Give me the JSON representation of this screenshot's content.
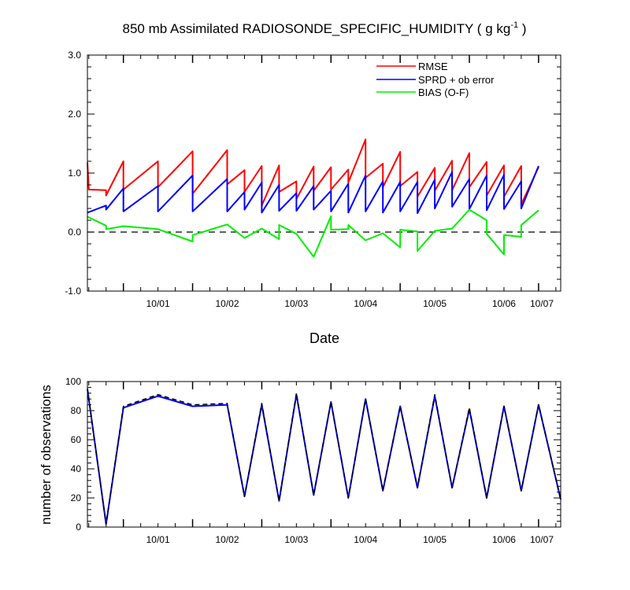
{
  "chart_data": [
    {
      "type": "line",
      "title_main": "850 mb Assimilated RADIOSONDE_SPECIFIC_HUMIDITY ( g kg",
      "title_sup": "-1",
      "title_end": " )",
      "xlabel": "Date",
      "ylabel": "",
      "ylim": [
        -1.0,
        3.0
      ],
      "yticks": [
        {
          "value": -1.0,
          "label": "-1.0"
        },
        {
          "value": 0.0,
          "label": "0.0"
        },
        {
          "value": 1.0,
          "label": "1.0"
        },
        {
          "value": 2.0,
          "label": "2.0"
        },
        {
          "value": 3.0,
          "label": "3.0"
        }
      ],
      "xlim": [
        -0.52,
        6.32
      ],
      "xticks": [
        {
          "value": 0.5,
          "label": "10/01"
        },
        {
          "value": 1.5,
          "label": "10/02"
        },
        {
          "value": 2.5,
          "label": "10/03"
        },
        {
          "value": 3.5,
          "label": "10/04"
        },
        {
          "value": 4.5,
          "label": "10/05"
        },
        {
          "value": 5.5,
          "label": "10/06"
        },
        {
          "value": 6.5,
          "label": "10/07"
        }
      ],
      "reference_line": 0.0,
      "legend_position": "top-right",
      "series": [
        {
          "name": "RMSE",
          "color": "#ff0000",
          "points": [
            [
              -0.52,
              1.18
            ],
            [
              -0.5,
              0.72
            ],
            [
              -0.25,
              0.71
            ],
            [
              -0.25,
              0.62
            ],
            [
              0.0,
              1.2
            ],
            [
              0.0,
              0.72
            ],
            [
              0.5,
              1.2
            ],
            [
              0.5,
              0.76
            ],
            [
              1.0,
              1.37
            ],
            [
              1.0,
              0.65
            ],
            [
              1.5,
              1.39
            ],
            [
              1.5,
              0.81
            ],
            [
              1.75,
              1.05
            ],
            [
              1.75,
              0.68
            ],
            [
              2.0,
              1.12
            ],
            [
              2.0,
              0.45
            ],
            [
              2.25,
              1.13
            ],
            [
              2.25,
              0.68
            ],
            [
              2.5,
              0.86
            ],
            [
              2.5,
              0.56
            ],
            [
              2.75,
              1.11
            ],
            [
              2.75,
              0.7
            ],
            [
              3.0,
              1.1
            ],
            [
              3.0,
              0.72
            ],
            [
              3.25,
              1.06
            ],
            [
              3.25,
              0.84
            ],
            [
              3.5,
              1.57
            ],
            [
              3.5,
              0.92
            ],
            [
              3.75,
              1.16
            ],
            [
              3.75,
              0.76
            ],
            [
              4.0,
              1.36
            ],
            [
              4.0,
              0.78
            ],
            [
              4.25,
              1.02
            ],
            [
              4.25,
              0.6
            ],
            [
              4.5,
              1.09
            ],
            [
              4.5,
              0.7
            ],
            [
              4.75,
              1.21
            ],
            [
              4.75,
              0.71
            ],
            [
              5.0,
              1.34
            ],
            [
              5.0,
              0.76
            ],
            [
              5.25,
              1.19
            ],
            [
              5.25,
              0.62
            ],
            [
              5.5,
              1.13
            ],
            [
              5.5,
              0.6
            ],
            [
              5.75,
              1.12
            ],
            [
              5.75,
              0.47
            ],
            [
              6.0,
              1.1
            ]
          ]
        },
        {
          "name": "SPRD + ob error",
          "color": "#0000ff",
          "points": [
            [
              -0.52,
              0.33
            ],
            [
              -0.25,
              0.45
            ],
            [
              -0.25,
              0.38
            ],
            [
              0.0,
              0.74
            ],
            [
              0.0,
              0.35
            ],
            [
              0.5,
              0.78
            ],
            [
              0.5,
              0.35
            ],
            [
              1.0,
              0.96
            ],
            [
              1.0,
              0.35
            ],
            [
              1.5,
              0.9
            ],
            [
              1.5,
              0.35
            ],
            [
              1.75,
              0.68
            ],
            [
              1.75,
              0.38
            ],
            [
              2.0,
              0.84
            ],
            [
              2.0,
              0.33
            ],
            [
              2.25,
              0.8
            ],
            [
              2.25,
              0.36
            ],
            [
              2.5,
              0.66
            ],
            [
              2.5,
              0.36
            ],
            [
              2.75,
              0.78
            ],
            [
              2.75,
              0.38
            ],
            [
              3.0,
              0.7
            ],
            [
              3.0,
              0.35
            ],
            [
              3.25,
              0.82
            ],
            [
              3.25,
              0.33
            ],
            [
              3.5,
              0.96
            ],
            [
              3.5,
              0.35
            ],
            [
              3.75,
              0.86
            ],
            [
              3.75,
              0.33
            ],
            [
              4.0,
              0.85
            ],
            [
              4.0,
              0.35
            ],
            [
              4.25,
              0.85
            ],
            [
              4.25,
              0.32
            ],
            [
              4.5,
              0.89
            ],
            [
              4.5,
              0.4
            ],
            [
              4.75,
              1.02
            ],
            [
              4.75,
              0.43
            ],
            [
              5.0,
              0.9
            ],
            [
              5.0,
              0.39
            ],
            [
              5.25,
              0.96
            ],
            [
              5.25,
              0.37
            ],
            [
              5.5,
              0.97
            ],
            [
              5.5,
              0.39
            ],
            [
              5.75,
              0.86
            ],
            [
              5.75,
              0.4
            ],
            [
              6.0,
              1.12
            ]
          ]
        },
        {
          "name": "BIAS (O-F)",
          "color": "#00ee00",
          "points": [
            [
              -0.52,
              0.26
            ],
            [
              -0.25,
              0.11
            ],
            [
              -0.25,
              0.05
            ],
            [
              0.0,
              0.1
            ],
            [
              0.5,
              0.05
            ],
            [
              1.0,
              -0.16
            ],
            [
              1.0,
              -0.05
            ],
            [
              1.5,
              0.13
            ],
            [
              1.75,
              -0.1
            ],
            [
              2.0,
              0.06
            ],
            [
              2.25,
              -0.12
            ],
            [
              2.25,
              0.12
            ],
            [
              2.5,
              -0.03
            ],
            [
              2.75,
              -0.42
            ],
            [
              3.0,
              0.27
            ],
            [
              3.0,
              0.04
            ],
            [
              3.25,
              0.05
            ],
            [
              3.25,
              0.12
            ],
            [
              3.5,
              -0.14
            ],
            [
              3.75,
              -0.02
            ],
            [
              4.0,
              -0.26
            ],
            [
              4.0,
              0.04
            ],
            [
              4.25,
              0.01
            ],
            [
              4.25,
              -0.32
            ],
            [
              4.5,
              0.02
            ],
            [
              4.75,
              0.06
            ],
            [
              5.0,
              0.38
            ],
            [
              5.25,
              0.2
            ],
            [
              5.25,
              -0.03
            ],
            [
              5.5,
              -0.38
            ],
            [
              5.5,
              -0.05
            ],
            [
              5.75,
              -0.08
            ],
            [
              5.75,
              0.12
            ],
            [
              6.0,
              0.37
            ]
          ]
        }
      ]
    },
    {
      "type": "line",
      "title": "",
      "xlabel": "",
      "ylabel": "number of observations",
      "ylim": [
        0,
        100
      ],
      "yticks": [
        {
          "value": 0,
          "label": "0"
        },
        {
          "value": 20,
          "label": "20"
        },
        {
          "value": 40,
          "label": "40"
        },
        {
          "value": 60,
          "label": "60"
        },
        {
          "value": 80,
          "label": "80"
        },
        {
          "value": 100,
          "label": "100"
        }
      ],
      "xlim": [
        -0.52,
        6.32
      ],
      "xticks": [
        {
          "value": 0.5,
          "label": "10/01"
        },
        {
          "value": 1.5,
          "label": "10/02"
        },
        {
          "value": 2.5,
          "label": "10/03"
        },
        {
          "value": 3.5,
          "label": "10/04"
        },
        {
          "value": 4.5,
          "label": "10/05"
        },
        {
          "value": 5.5,
          "label": "10/06"
        },
        {
          "value": 6.5,
          "label": "10/07"
        }
      ],
      "series": [
        {
          "color": "#0000ff",
          "dashed": false,
          "points": [
            [
              -0.52,
              95
            ],
            [
              -0.25,
              2
            ],
            [
              0.0,
              82
            ],
            [
              0.5,
              90
            ],
            [
              1.0,
              83
            ],
            [
              1.5,
              84
            ],
            [
              1.75,
              21
            ],
            [
              2.0,
              84
            ],
            [
              2.25,
              18
            ],
            [
              2.5,
              91
            ],
            [
              2.75,
              22
            ],
            [
              3.0,
              86
            ],
            [
              3.25,
              20
            ],
            [
              3.5,
              88
            ],
            [
              3.75,
              25
            ],
            [
              4.0,
              83
            ],
            [
              4.25,
              27
            ],
            [
              4.5,
              90
            ],
            [
              4.75,
              27
            ],
            [
              5.0,
              81
            ],
            [
              5.25,
              20
            ],
            [
              5.5,
              83
            ],
            [
              5.75,
              25
            ],
            [
              6.0,
              84
            ],
            [
              6.32,
              19
            ]
          ]
        },
        {
          "color": "#000000",
          "dashed": true,
          "points": [
            [
              -0.52,
              95
            ],
            [
              -0.25,
              2
            ],
            [
              0.0,
              83
            ],
            [
              0.5,
              91
            ],
            [
              1.0,
              84
            ],
            [
              1.5,
              85
            ],
            [
              1.75,
              21
            ],
            [
              2.0,
              85
            ],
            [
              2.25,
              18
            ],
            [
              2.5,
              92
            ],
            [
              2.75,
              22
            ],
            [
              3.0,
              86
            ],
            [
              3.25,
              20
            ],
            [
              3.5,
              88
            ],
            [
              3.75,
              25
            ],
            [
              4.0,
              83
            ],
            [
              4.25,
              27
            ],
            [
              4.5,
              91
            ],
            [
              4.75,
              27
            ],
            [
              5.0,
              82
            ],
            [
              5.25,
              20
            ],
            [
              5.5,
              83
            ],
            [
              5.75,
              25
            ],
            [
              6.0,
              84
            ],
            [
              6.32,
              19
            ]
          ]
        }
      ]
    }
  ]
}
